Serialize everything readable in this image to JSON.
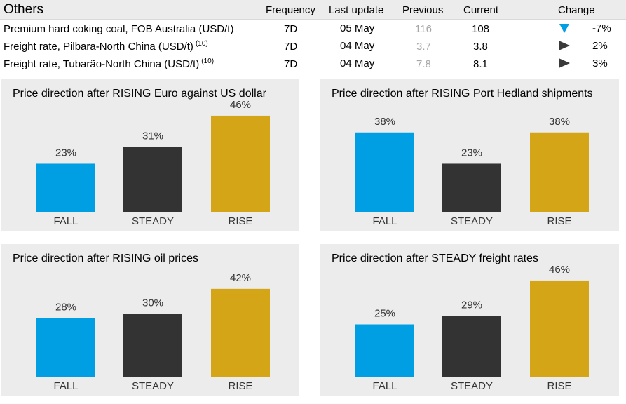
{
  "table": {
    "title": "Others",
    "headers": {
      "frequency": "Frequency",
      "last_update": "Last update",
      "previous": "Previous",
      "current": "Current",
      "change": "Change"
    },
    "rows": [
      {
        "label": "Premium hard coking coal, FOB Australia (USD/t)",
        "note": "",
        "frequency": "7D",
        "last_update": "05 May",
        "previous": "116",
        "current": "108",
        "direction": "down",
        "change": "-7%"
      },
      {
        "label": "Freight rate, Pilbara-North China (USD/t)",
        "note": "(10)",
        "frequency": "7D",
        "last_update": "04 May",
        "previous": "3.7",
        "current": "3.8",
        "direction": "right",
        "change": "2%"
      },
      {
        "label": "Freight rate, Tubarão-North China (USD/t)",
        "note": "(10)",
        "frequency": "7D",
        "last_update": "04 May",
        "previous": "7.8",
        "current": "8.1",
        "direction": "right",
        "change": "3%"
      }
    ]
  },
  "colors": {
    "fall": "#009fe3",
    "steady": "#333333",
    "rise": "#d4a517",
    "panel_bg": "#ececec",
    "down_arrow": "#009fe3",
    "flat_arrow": "#3a3a3a"
  },
  "chart_data": [
    {
      "type": "bar",
      "title": "Price direction after RISING Euro against US dollar",
      "categories": [
        "FALL",
        "STEADY",
        "RISE"
      ],
      "values": [
        23,
        31,
        46
      ],
      "value_labels": [
        "23%",
        "31%",
        "46%"
      ],
      "ylim": [
        0,
        50
      ]
    },
    {
      "type": "bar",
      "title": "Price direction after RISING Port Hedland shipments",
      "categories": [
        "FALL",
        "STEADY",
        "RISE"
      ],
      "values": [
        38,
        23,
        38
      ],
      "value_labels": [
        "38%",
        "23%",
        "38%"
      ],
      "ylim": [
        0,
        50
      ]
    },
    {
      "type": "bar",
      "title": "Price direction after RISING oil prices",
      "categories": [
        "FALL",
        "STEADY",
        "RISE"
      ],
      "values": [
        28,
        30,
        42
      ],
      "value_labels": [
        "28%",
        "30%",
        "42%"
      ],
      "ylim": [
        0,
        50
      ]
    },
    {
      "type": "bar",
      "title": "Price direction after STEADY freight rates",
      "categories": [
        "FALL",
        "STEADY",
        "RISE"
      ],
      "values": [
        25,
        29,
        46
      ],
      "value_labels": [
        "25%",
        "29%",
        "46%"
      ],
      "ylim": [
        0,
        50
      ]
    }
  ]
}
